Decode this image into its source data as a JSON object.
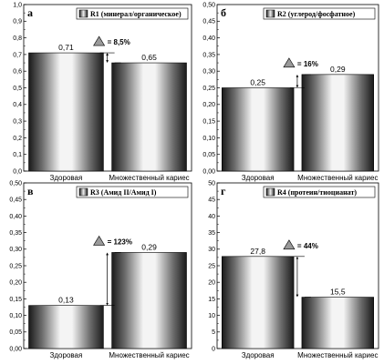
{
  "chart_data": [
    {
      "type": "bar",
      "panel_label": "а",
      "legend": "R1 (минерал/органическое)",
      "categories": [
        "Здоровая",
        "Множественный кариес"
      ],
      "values": [
        0.71,
        0.65
      ],
      "value_labels": [
        "0,71",
        "0,65"
      ],
      "delta_label": "= 8,5%",
      "ylim": [
        0,
        1.0
      ],
      "yticks": [
        "0,0",
        "0,1",
        "0,2",
        "0,3",
        "0,4",
        "0,5",
        "0,6",
        "0,7",
        "0,8",
        "0,9",
        "1,0"
      ]
    },
    {
      "type": "bar",
      "panel_label": "б",
      "legend": "R2 (углерод/фосфатное)",
      "categories": [
        "Здоровая",
        "Множественный кариес"
      ],
      "values": [
        0.25,
        0.29
      ],
      "value_labels": [
        "0,25",
        "0,29"
      ],
      "delta_label": "= 16%",
      "ylim": [
        0,
        0.5
      ],
      "yticks": [
        "0,00",
        "0,05",
        "0,10",
        "0,15",
        "0,20",
        "0,25",
        "0,30",
        "0,35",
        "0,40",
        "0,45",
        "0,50"
      ]
    },
    {
      "type": "bar",
      "panel_label": "в",
      "legend": "R3 (Амид II/Амид I)",
      "categories": [
        "Здоровая",
        "Множественный кариес"
      ],
      "values": [
        0.13,
        0.29
      ],
      "value_labels": [
        "0,13",
        "0,29"
      ],
      "delta_label": "= 123%",
      "ylim": [
        0,
        0.5
      ],
      "yticks": [
        "0,00",
        "0,05",
        "0,10",
        "0,15",
        "0,20",
        "0,25",
        "0,30",
        "0,35",
        "0,40",
        "0,45",
        "0,50"
      ]
    },
    {
      "type": "bar",
      "panel_label": "г",
      "legend": "R4 (протеин/тиоцианат)",
      "categories": [
        "Здоровая",
        "Множественный кариес"
      ],
      "values": [
        27.8,
        15.5
      ],
      "value_labels": [
        "27,8",
        "15,5"
      ],
      "delta_label": "= 44%",
      "ylim": [
        0,
        50
      ],
      "yticks": [
        "0",
        "5",
        "10",
        "15",
        "20",
        "25",
        "30",
        "35",
        "40",
        "45",
        "50"
      ]
    }
  ]
}
